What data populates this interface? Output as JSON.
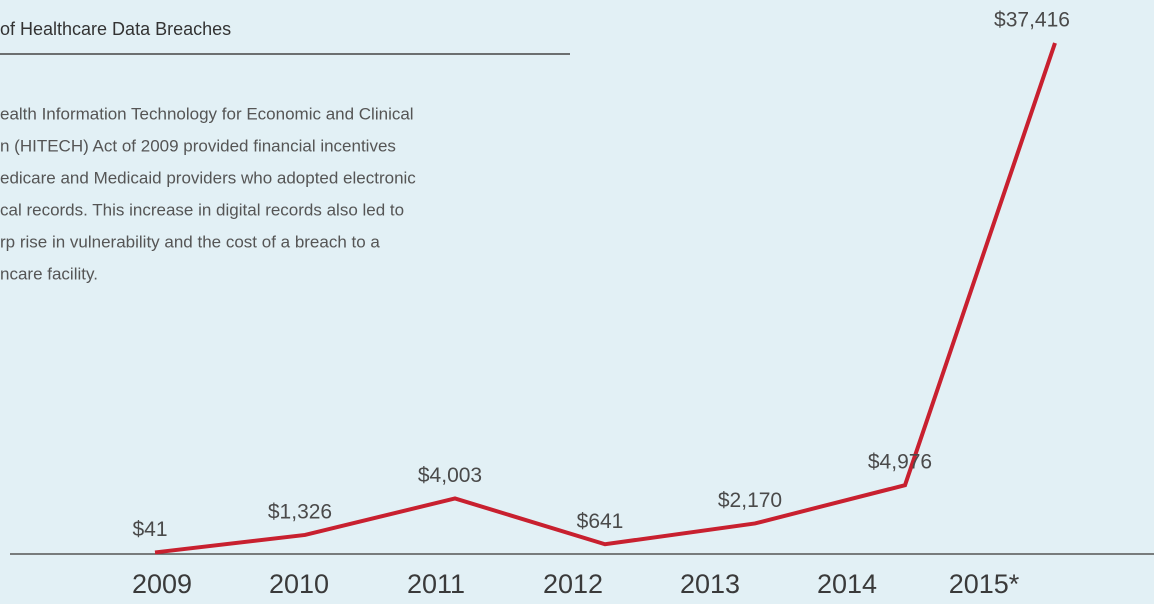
{
  "chart_data": {
    "type": "line",
    "title": "of Healthcare Data Breaches",
    "description": [
      "ealth Information Technology for Economic and Clinical",
      "n (HITECH) Act of 2009 provided financial incentives",
      "edicare and Medicaid providers who adopted electronic",
      "cal records. This increase in digital records also led to",
      "rp rise in vulnerability and the cost of a breach to a",
      "ncare facility."
    ],
    "categories": [
      "2009",
      "2010",
      "2011",
      "2012",
      "2013",
      "2014",
      "2015*"
    ],
    "values": [
      41,
      1326,
      4003,
      641,
      2170,
      4976,
      37416
    ],
    "value_labels": [
      "$41",
      "$1,326",
      "$4,003",
      "$641",
      "$2,170",
      "$4,976",
      "$37,416"
    ],
    "color": "#c8202f"
  }
}
